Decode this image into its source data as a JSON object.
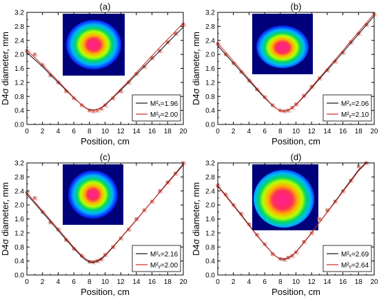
{
  "colors": {
    "mx": "#1a1a1a",
    "my": "#d2322d",
    "marker_fill": "#c87a5a",
    "marker_edge": "#e7a9ab"
  },
  "chart_data": [
    {
      "type": "line",
      "panel_label": "(a)",
      "xlabel": "Position, cm",
      "ylabel": "D4σ diameter, mm",
      "xlim": [
        0,
        20
      ],
      "ylim": [
        0.0,
        3.2
      ],
      "xticks": [
        "0",
        "2",
        "4",
        "6",
        "8",
        "10",
        "12",
        "14",
        "16",
        "18",
        "20"
      ],
      "yticks": [
        "0.0",
        "0.4",
        "0.8",
        "1.2",
        "1.6",
        "2.0",
        "2.4",
        "2.8",
        "3.2"
      ],
      "legend": [
        {
          "label": "M²ₓ=1.96",
          "color": "#1a1a1a"
        },
        {
          "label": "M²ᵧ=2.00",
          "color": "#d2322d"
        }
      ],
      "legend_position": "bottom-right",
      "inset": "beam-profile",
      "series": [
        {
          "fit_x": [
            0.0,
            1.0,
            2.0,
            3.0,
            4.0,
            5.0,
            6.0,
            7.0,
            7.5,
            8.0,
            8.5,
            9.0,
            9.5,
            10.0,
            11.0,
            12.0,
            13.0,
            14.0,
            15.0,
            16.0,
            17.0,
            18.0,
            19.0,
            20.0
          ],
          "fit_y": [
            2.05,
            1.85,
            1.65,
            1.42,
            1.2,
            0.98,
            0.76,
            0.56,
            0.48,
            0.42,
            0.41,
            0.43,
            0.47,
            0.55,
            0.76,
            0.98,
            1.2,
            1.43,
            1.65,
            1.88,
            2.1,
            2.33,
            2.56,
            2.78
          ]
        },
        {
          "fit_x": [
            0.0,
            1.0,
            2.0,
            3.0,
            4.0,
            5.0,
            6.0,
            7.0,
            7.5,
            8.0,
            8.5,
            9.0,
            9.5,
            10.0,
            11.0,
            12.0,
            13.0,
            14.0,
            15.0,
            16.0,
            17.0,
            18.0,
            19.0,
            20.0
          ],
          "fit_y": [
            2.12,
            1.91,
            1.7,
            1.47,
            1.24,
            1.0,
            0.77,
            0.56,
            0.47,
            0.41,
            0.4,
            0.43,
            0.48,
            0.57,
            0.78,
            1.01,
            1.24,
            1.48,
            1.72,
            1.96,
            2.2,
            2.43,
            2.66,
            2.9
          ]
        }
      ],
      "measured": {
        "x": [
          0.0,
          1.0,
          2.0,
          3.0,
          4.0,
          5.0,
          6.0,
          7.0,
          8.0,
          8.5,
          9.0,
          9.5,
          10.0,
          11.0,
          12.0,
          13.0,
          14.0,
          15.0,
          16.0,
          17.0,
          18.0,
          19.0,
          20.0
        ],
        "y": [
          2.1,
          2.0,
          1.7,
          1.4,
          1.2,
          0.95,
          0.75,
          0.55,
          0.4,
          0.38,
          0.4,
          0.45,
          0.55,
          0.75,
          0.95,
          1.2,
          1.45,
          1.65,
          1.9,
          2.1,
          2.35,
          2.6,
          2.85
        ]
      }
    },
    {
      "type": "line",
      "panel_label": "(b)",
      "xlabel": "Position, cm",
      "ylabel": "D4σ diameter, mm",
      "xlim": [
        0,
        20
      ],
      "ylim": [
        0.0,
        3.2
      ],
      "xticks": [
        "0",
        "2",
        "4",
        "6",
        "8",
        "10",
        "12",
        "14",
        "16",
        "18",
        "20"
      ],
      "yticks": [
        "0.0",
        "0.4",
        "0.8",
        "1.2",
        "1.6",
        "2.0",
        "2.4",
        "2.8",
        "3.2"
      ],
      "legend": [
        {
          "label": "M²ₓ=2.06",
          "color": "#1a1a1a"
        },
        {
          "label": "M²ᵧ=2.10",
          "color": "#d2322d"
        }
      ],
      "legend_position": "bottom-right",
      "inset": "beam-profile",
      "series": [
        {
          "fit_x": [
            0.0,
            1.0,
            2.0,
            3.0,
            4.0,
            5.0,
            6.0,
            7.0,
            7.5,
            8.0,
            8.5,
            9.0,
            9.5,
            10.0,
            11.0,
            12.0,
            13.0,
            14.0,
            15.0,
            16.0,
            17.0,
            18.0,
            19.0,
            20.0
          ],
          "fit_y": [
            2.25,
            2.0,
            1.75,
            1.5,
            1.25,
            1.0,
            0.76,
            0.54,
            0.45,
            0.39,
            0.38,
            0.41,
            0.47,
            0.56,
            0.79,
            1.04,
            1.3,
            1.55,
            1.8,
            2.06,
            2.32,
            2.58,
            2.84,
            3.1
          ]
        },
        {
          "fit_x": [
            0.0,
            1.0,
            2.0,
            3.0,
            4.0,
            5.0,
            6.0,
            7.0,
            7.5,
            8.0,
            8.5,
            9.0,
            9.5,
            10.0,
            11.0,
            12.0,
            13.0,
            14.0,
            15.0,
            16.0,
            17.0,
            18.0,
            19.0,
            20.0
          ],
          "fit_y": [
            2.32,
            2.07,
            1.81,
            1.55,
            1.29,
            1.03,
            0.78,
            0.55,
            0.45,
            0.39,
            0.38,
            0.41,
            0.47,
            0.57,
            0.81,
            1.07,
            1.33,
            1.59,
            1.85,
            2.11,
            2.38,
            2.64,
            2.9,
            3.16
          ]
        }
      ],
      "measured": {
        "x": [
          0.0,
          1.0,
          2.0,
          3.0,
          4.0,
          5.0,
          6.0,
          7.0,
          8.0,
          8.5,
          9.0,
          9.5,
          10.0,
          11.0,
          12.0,
          13.0,
          14.0,
          15.0,
          16.0,
          17.0,
          18.0,
          19.0,
          20.0
        ],
        "y": [
          2.3,
          2.0,
          1.75,
          1.5,
          1.25,
          1.0,
          0.78,
          0.55,
          0.4,
          0.38,
          0.4,
          0.48,
          0.58,
          0.82,
          1.08,
          1.32,
          1.55,
          1.8,
          2.05,
          2.35,
          2.6,
          2.85,
          3.15
        ]
      }
    },
    {
      "type": "line",
      "panel_label": "(c)",
      "xlabel": "Position, cm",
      "ylabel": "D4σ diameter, mm",
      "xlim": [
        0,
        20
      ],
      "ylim": [
        0.0,
        3.2
      ],
      "xticks": [
        "0",
        "2",
        "4",
        "6",
        "8",
        "10",
        "12",
        "14",
        "16",
        "18",
        "20"
      ],
      "yticks": [
        "0.0",
        "0.4",
        "0.8",
        "1.2",
        "1.6",
        "2.0",
        "2.4",
        "2.8",
        "3.2"
      ],
      "legend": [
        {
          "label": "M²ₓ=2.16",
          "color": "#1a1a1a"
        },
        {
          "label": "M²ᵧ=2.00",
          "color": "#d2322d"
        }
      ],
      "legend_position": "bottom-right",
      "inset": "beam-profile",
      "series": [
        {
          "fit_x": [
            0.0,
            1.0,
            2.0,
            3.0,
            4.0,
            5.0,
            6.0,
            7.0,
            7.5,
            8.0,
            8.5,
            9.0,
            9.5,
            10.0,
            11.0,
            12.0,
            13.0,
            14.0,
            15.0,
            16.0,
            17.0,
            18.0,
            19.0,
            20.0
          ],
          "fit_y": [
            2.3,
            2.05,
            1.79,
            1.53,
            1.27,
            1.01,
            0.76,
            0.53,
            0.43,
            0.37,
            0.36,
            0.39,
            0.45,
            0.55,
            0.79,
            1.05,
            1.31,
            1.57,
            1.84,
            2.1,
            2.37,
            2.64,
            2.9,
            3.17
          ]
        },
        {
          "fit_x": [
            0.0,
            1.0,
            2.0,
            3.0,
            4.0,
            5.0,
            6.0,
            7.0,
            7.5,
            8.0,
            8.5,
            9.0,
            9.5,
            10.0,
            11.0,
            12.0,
            13.0,
            14.0,
            15.0,
            16.0,
            17.0,
            18.0,
            19.0,
            20.0
          ],
          "fit_y": [
            2.35,
            2.09,
            1.83,
            1.57,
            1.31,
            1.05,
            0.79,
            0.56,
            0.46,
            0.4,
            0.39,
            0.42,
            0.48,
            0.57,
            0.81,
            1.06,
            1.32,
            1.58,
            1.84,
            2.1,
            2.36,
            2.62,
            2.88,
            3.14
          ]
        }
      ],
      "measured": {
        "x": [
          0.0,
          1.0,
          2.0,
          3.0,
          4.0,
          5.0,
          6.0,
          7.0,
          8.0,
          8.5,
          9.0,
          9.5,
          10.0,
          11.0,
          12.0,
          13.0,
          14.0,
          15.0,
          16.0,
          17.0,
          18.0,
          19.0,
          20.0
        ],
        "y": [
          2.35,
          2.2,
          1.8,
          1.5,
          1.3,
          1.0,
          0.75,
          0.55,
          0.38,
          0.37,
          0.4,
          0.45,
          0.58,
          0.8,
          1.05,
          1.3,
          1.6,
          1.85,
          2.1,
          2.4,
          2.65,
          2.9,
          3.2
        ]
      }
    },
    {
      "type": "line",
      "panel_label": "(d)",
      "xlabel": "Position, cm",
      "ylabel": "D4σ diameter, mm",
      "xlim": [
        0,
        20
      ],
      "ylim": [
        0.0,
        3.2
      ],
      "xticks": [
        "0",
        "2",
        "4",
        "6",
        "8",
        "10",
        "12",
        "14",
        "16",
        "18",
        "20"
      ],
      "yticks": [
        "0.0",
        "0.4",
        "0.8",
        "1.2",
        "1.6",
        "2.0",
        "2.4",
        "2.8",
        "3.2"
      ],
      "legend": [
        {
          "label": "M²ₓ=2.69",
          "color": "#1a1a1a"
        },
        {
          "label": "M²ᵧ=2.64",
          "color": "#d2322d"
        }
      ],
      "legend_position": "bottom-right",
      "inset": "beam-profile",
      "series": [
        {
          "fit_x": [
            0.0,
            1.0,
            2.0,
            3.0,
            4.0,
            5.0,
            6.0,
            7.0,
            7.5,
            8.0,
            8.5,
            9.0,
            9.5,
            10.0,
            11.0,
            12.0,
            13.0,
            14.0,
            15.0,
            16.0,
            17.0,
            18.0,
            19.0
          ],
          "fit_y": [
            2.55,
            2.28,
            2.0,
            1.72,
            1.43,
            1.14,
            0.87,
            0.62,
            0.52,
            0.46,
            0.45,
            0.48,
            0.55,
            0.65,
            0.92,
            1.2,
            1.5,
            1.8,
            2.1,
            2.4,
            2.7,
            3.0,
            3.22
          ]
        },
        {
          "fit_x": [
            0.0,
            1.0,
            2.0,
            3.0,
            4.0,
            5.0,
            6.0,
            7.0,
            7.5,
            8.0,
            8.5,
            9.0,
            9.5,
            10.0,
            11.0,
            12.0,
            13.0,
            14.0,
            15.0,
            16.0,
            17.0,
            18.0,
            19.0
          ],
          "fit_y": [
            2.53,
            2.26,
            1.98,
            1.7,
            1.41,
            1.13,
            0.86,
            0.62,
            0.52,
            0.47,
            0.46,
            0.49,
            0.56,
            0.66,
            0.93,
            1.21,
            1.5,
            1.79,
            2.08,
            2.38,
            2.67,
            2.97,
            3.2
          ]
        }
      ],
      "measured": {
        "x": [
          0.0,
          1.0,
          2.0,
          3.0,
          4.0,
          5.0,
          6.0,
          7.0,
          8.0,
          8.5,
          9.0,
          9.5,
          10.0,
          11.0,
          12.0,
          13.0,
          14.0,
          15.0,
          16.0,
          17.0,
          18.0,
          19.0
        ],
        "y": [
          2.55,
          2.3,
          2.0,
          1.75,
          1.45,
          1.15,
          0.88,
          0.6,
          0.46,
          0.44,
          0.5,
          0.55,
          0.65,
          0.95,
          1.2,
          1.6,
          1.85,
          2.1,
          2.4,
          2.7,
          3.1,
          3.2
        ]
      }
    }
  ]
}
